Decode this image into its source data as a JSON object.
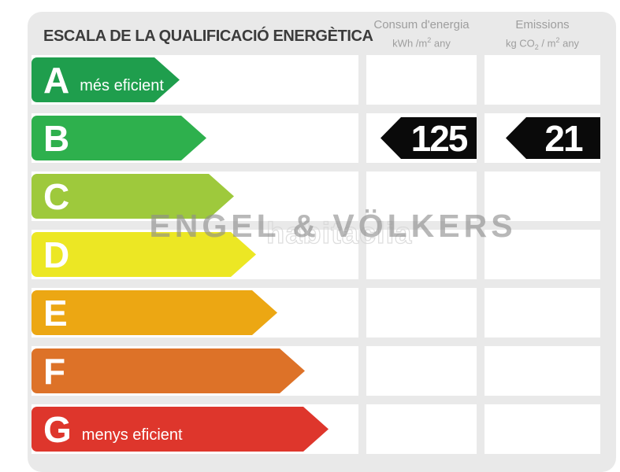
{
  "header": {
    "title": "ESCALA DE LA QUALIFICACIÓ ENERGÈTICA",
    "consum": {
      "name": "Consum d'energia",
      "unit": [
        {
          "t": "kWh /m"
        },
        {
          "sup": "2"
        },
        {
          "t": " any"
        }
      ]
    },
    "emissions": {
      "name": "Emissions",
      "unit": [
        {
          "t": "kg CO"
        },
        {
          "sub": "2"
        },
        {
          "t": " / m"
        },
        {
          "sup": "2"
        },
        {
          "t": " any"
        }
      ]
    }
  },
  "scale": {
    "rows": [
      {
        "letter": "A",
        "label": "més eficient",
        "color": "#1f9e4d",
        "arrow_width": 188
      },
      {
        "letter": "B",
        "label": "",
        "color": "#2eb04d",
        "arrow_width": 222,
        "consum": "125",
        "emissions": "21"
      },
      {
        "letter": "C",
        "label": "",
        "color": "#9ec93c",
        "arrow_width": 257
      },
      {
        "letter": "D",
        "label": "",
        "color": "#ece724",
        "arrow_width": 285
      },
      {
        "letter": "E",
        "label": "",
        "color": "#eca713",
        "arrow_width": 312
      },
      {
        "letter": "F",
        "label": "",
        "color": "#dd7228",
        "arrow_width": 347
      },
      {
        "letter": "G",
        "label": "menys eficient",
        "color": "#de362c",
        "arrow_width": 377
      }
    ],
    "value_arrow_color": "#0a0a0a",
    "panel_color": "#e9e9e9"
  },
  "watermark": {
    "primary": "ENGEL & VÖLKERS",
    "secondary": "habitaclia"
  },
  "chart_data": {
    "type": "bar",
    "title": "ESCALA DE LA QUALIFICACIÓ ENERGÈTICA",
    "categories": [
      "A",
      "B",
      "C",
      "D",
      "E",
      "F",
      "G"
    ],
    "category_labels": {
      "A": "més eficient",
      "G": "menys eficient"
    },
    "bar_colors": [
      "#1f9e4d",
      "#2eb04d",
      "#9ec93c",
      "#ece724",
      "#eca713",
      "#dd7228",
      "#de362c"
    ],
    "bar_relative_lengths": [
      188,
      222,
      257,
      285,
      312,
      347,
      377
    ],
    "rating": "B",
    "series": [
      {
        "name": "Consum d'energia (kWh/m2 any)",
        "rated_category": "B",
        "value": 125
      },
      {
        "name": "Emissions (kg CO2/m2 any)",
        "rated_category": "B",
        "value": 21
      }
    ],
    "legend_position": "none",
    "grid": false
  }
}
